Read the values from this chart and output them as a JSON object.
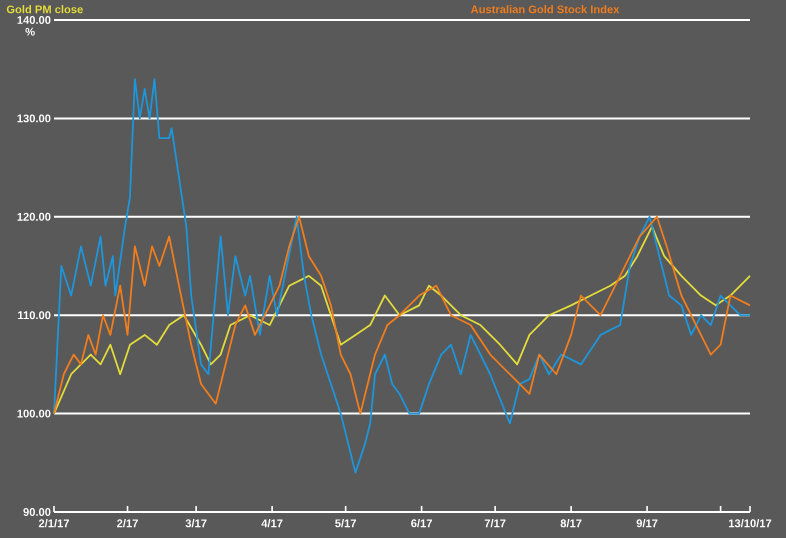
{
  "chart_data": {
    "type": "line",
    "ylabel": "%",
    "xlim": [
      "2017-01-02",
      "2017-10-13"
    ],
    "ylim": [
      90,
      140
    ],
    "xticks": [
      {
        "value": "2017-01-02",
        "label": "2/1/17"
      },
      {
        "value": "2017-02-01",
        "label": "2/17"
      },
      {
        "value": "2017-03-01",
        "label": "3/17"
      },
      {
        "value": "2017-04-01",
        "label": "4/17"
      },
      {
        "value": "2017-05-01",
        "label": "5/17"
      },
      {
        "value": "2017-06-01",
        "label": "6/17"
      },
      {
        "value": "2017-07-01",
        "label": "7/17"
      },
      {
        "value": "2017-08-01",
        "label": "8/17"
      },
      {
        "value": "2017-09-01",
        "label": "9/17"
      },
      {
        "value": "2017-10-01",
        "label": null
      },
      {
        "value": "2017-10-13",
        "label": "13/10/17"
      }
    ],
    "yticks": [
      {
        "value": 90,
        "label": "90.00"
      },
      {
        "value": 100,
        "label": "100.00"
      },
      {
        "value": 110,
        "label": "110.00"
      },
      {
        "value": 120,
        "label": "120.00"
      },
      {
        "value": 130,
        "label": "130.00"
      },
      {
        "value": 140,
        "label": "140.00"
      }
    ],
    "grid": "y",
    "legend": "top",
    "marker": "none",
    "line_style": "solid",
    "series": [
      {
        "name": "Gold PM close",
        "color": "#e3dc3a",
        "x": [
          "2017-01-02",
          "2017-01-09",
          "2017-01-17",
          "2017-01-21",
          "2017-01-25",
          "2017-01-29",
          "2017-02-02",
          "2017-02-08",
          "2017-02-13",
          "2017-02-18",
          "2017-02-24",
          "2017-03-03",
          "2017-03-07",
          "2017-03-11",
          "2017-03-15",
          "2017-03-23",
          "2017-03-31",
          "2017-04-04",
          "2017-04-08",
          "2017-04-16",
          "2017-04-21",
          "2017-04-25",
          "2017-04-29",
          "2017-05-05",
          "2017-05-11",
          "2017-05-17",
          "2017-05-23",
          "2017-05-31",
          "2017-06-04",
          "2017-06-09",
          "2017-06-17",
          "2017-06-25",
          "2017-07-03",
          "2017-07-10",
          "2017-07-15",
          "2017-07-23",
          "2017-08-01",
          "2017-08-09",
          "2017-08-17",
          "2017-08-23",
          "2017-08-28",
          "2017-09-03",
          "2017-09-08",
          "2017-09-15",
          "2017-09-23",
          "2017-09-29",
          "2017-10-05",
          "2017-10-13"
        ],
        "values": [
          100,
          104,
          106,
          105,
          107,
          104,
          107,
          108,
          107,
          109,
          110,
          107,
          105,
          106,
          109,
          110,
          109,
          111,
          113,
          114,
          113,
          110,
          107,
          108,
          109,
          112,
          110,
          111,
          113,
          112,
          110,
          109,
          107,
          105,
          108,
          110,
          111,
          112,
          113,
          114,
          116,
          119,
          116,
          114,
          112,
          111,
          112,
          114
        ]
      },
      {
        "color": "#1e96dc",
        "x": [
          "2017-01-02",
          "2017-01-05",
          "2017-01-09",
          "2017-01-13",
          "2017-01-17",
          "2017-01-21",
          "2017-01-23",
          "2017-01-26",
          "2017-01-27",
          "2017-01-31",
          "2017-02-02",
          "2017-02-04",
          "2017-02-06",
          "2017-02-08",
          "2017-02-10",
          "2017-02-12",
          "2017-02-14",
          "2017-02-18",
          "2017-02-19",
          "2017-02-25",
          "2017-02-27",
          "2017-03-03",
          "2017-03-06",
          "2017-03-11",
          "2017-03-14",
          "2017-03-17",
          "2017-03-21",
          "2017-03-23",
          "2017-03-27",
          "2017-03-31",
          "2017-04-03",
          "2017-04-11",
          "2017-04-14",
          "2017-04-17",
          "2017-04-21",
          "2017-04-25",
          "2017-04-29",
          "2017-05-03",
          "2017-05-05",
          "2017-05-09",
          "2017-05-11",
          "2017-05-13",
          "2017-05-17",
          "2017-05-20",
          "2017-05-23",
          "2017-05-27",
          "2017-05-31",
          "2017-06-04",
          "2017-06-09",
          "2017-06-13",
          "2017-06-17",
          "2017-06-21",
          "2017-06-25",
          "2017-06-29",
          "2017-07-07",
          "2017-07-11",
          "2017-07-15",
          "2017-07-19",
          "2017-07-23",
          "2017-07-28",
          "2017-08-05",
          "2017-08-13",
          "2017-08-21",
          "2017-08-25",
          "2017-08-29",
          "2017-09-02",
          "2017-09-06",
          "2017-09-10",
          "2017-09-15",
          "2017-09-19",
          "2017-09-23",
          "2017-09-27",
          "2017-10-01",
          "2017-10-05",
          "2017-10-09",
          "2017-10-13"
        ],
        "values": [
          100,
          115,
          112,
          117,
          113,
          118,
          113,
          116,
          112,
          119,
          122,
          134,
          130,
          133,
          130,
          134,
          128,
          128,
          129,
          119,
          112,
          105,
          104,
          118,
          110,
          116,
          112,
          114,
          108,
          114,
          110,
          120,
          114,
          110,
          106,
          103,
          100,
          96,
          94,
          97,
          99,
          104,
          106,
          103,
          102,
          100,
          100,
          103,
          106,
          107,
          104,
          108,
          106,
          104,
          99,
          103,
          103.5,
          106,
          104,
          106,
          105,
          108,
          109,
          115,
          118,
          120,
          116,
          112,
          111,
          108,
          110,
          109,
          112,
          111,
          110,
          110
        ]
      },
      {
        "name": "Australian Gold Stock Index",
        "color": "#f07d1e",
        "x": [
          "2017-01-02",
          "2017-01-06",
          "2017-01-10",
          "2017-01-13",
          "2017-01-16",
          "2017-01-19",
          "2017-01-22",
          "2017-01-25",
          "2017-01-29",
          "2017-02-01",
          "2017-02-04",
          "2017-02-08",
          "2017-02-11",
          "2017-02-14",
          "2017-02-18",
          "2017-02-22",
          "2017-02-27",
          "2017-03-03",
          "2017-03-09",
          "2017-03-14",
          "2017-03-17",
          "2017-03-21",
          "2017-03-25",
          "2017-03-31",
          "2017-04-04",
          "2017-04-08",
          "2017-04-12",
          "2017-04-16",
          "2017-04-21",
          "2017-04-25",
          "2017-04-29",
          "2017-05-03",
          "2017-05-07",
          "2017-05-10",
          "2017-05-13",
          "2017-05-18",
          "2017-05-23",
          "2017-05-31",
          "2017-06-07",
          "2017-06-13",
          "2017-06-21",
          "2017-06-29",
          "2017-07-07",
          "2017-07-15",
          "2017-07-19",
          "2017-07-26",
          "2017-08-01",
          "2017-08-05",
          "2017-08-13",
          "2017-08-21",
          "2017-08-29",
          "2017-09-05",
          "2017-09-09",
          "2017-09-15",
          "2017-09-21",
          "2017-09-27",
          "2017-10-01",
          "2017-10-05",
          "2017-10-13"
        ],
        "values": [
          100,
          104,
          106,
          105,
          108,
          106,
          110,
          108,
          113,
          108,
          117,
          113,
          117,
          115,
          118,
          113,
          107,
          103,
          101,
          106,
          109,
          111,
          108,
          111,
          113,
          117,
          120,
          116,
          114,
          111,
          106,
          104,
          100,
          103,
          106,
          109,
          110,
          112,
          113,
          110,
          109,
          106,
          104,
          102,
          106,
          104,
          108,
          112,
          110,
          114,
          118,
          120,
          117,
          112,
          109,
          106,
          107,
          112,
          111
        ]
      }
    ]
  }
}
